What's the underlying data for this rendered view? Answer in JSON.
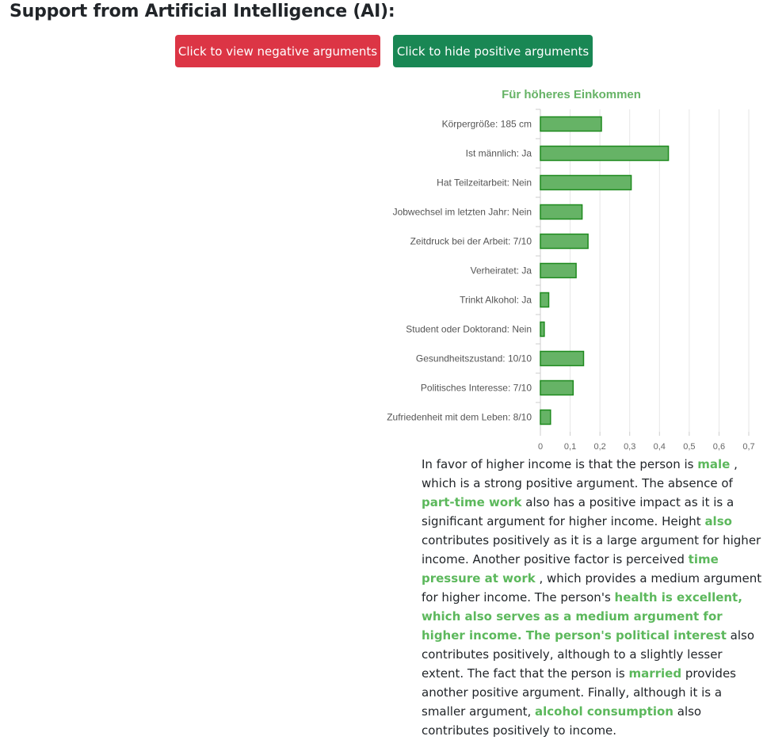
{
  "heading": "Support from Artificial Intelligence (AI):",
  "buttons": {
    "negative": "Click to view negative arguments",
    "positive": "Click to hide positive arguments"
  },
  "colors": {
    "negative_button": "#dc3545",
    "positive_button": "#198754",
    "bar_fill": "#66b366",
    "bar_stroke": "#1e8a1e",
    "highlight": "#5cb85c"
  },
  "chart_data": {
    "type": "bar",
    "orientation": "horizontal",
    "title": "Für höheres Einkommen",
    "categories": [
      "Körpergröße: 185 cm",
      "Ist männlich: Ja",
      "Hat Teilzeitarbeit: Nein",
      "Jobwechsel im letzten Jahr: Nein",
      "Zeitdruck bei der Arbeit: 7/10",
      "Verheiratet: Ja",
      "Trinkt Alkohol: Ja",
      "Student oder Doktorand: Nein",
      "Gesundheitszustand: 10/10",
      "Politisches Interesse: 7/10",
      "Zufriedenheit mit dem Leben: 8/10"
    ],
    "values": [
      0.205,
      0.43,
      0.305,
      0.14,
      0.16,
      0.12,
      0.028,
      0.013,
      0.145,
      0.11,
      0.034
    ],
    "xlim": [
      0,
      0.7
    ],
    "xticks": [
      "0",
      "0,1",
      "0,2",
      "0,3",
      "0,4",
      "0,5",
      "0,6",
      "0,7"
    ],
    "grid": true,
    "legend": "none"
  },
  "explanation": [
    {
      "t": "In favor of higher income is that the person is ",
      "hl": false
    },
    {
      "t": "male",
      "hl": true
    },
    {
      "t": " , which is a strong positive argument. The absence of ",
      "hl": false
    },
    {
      "t": "part-time work",
      "hl": true
    },
    {
      "t": " also has a positive impact as it is a significant argument for higher income. Height ",
      "hl": false
    },
    {
      "t": "also",
      "hl": true
    },
    {
      "t": " contributes positively as it is a large argument for higher income. Another positive factor is perceived ",
      "hl": false
    },
    {
      "t": "time pressure at work",
      "hl": true
    },
    {
      "t": " , which provides a medium argument for higher income. The person's ",
      "hl": false
    },
    {
      "t": "health is excellent, which also serves as a medium argument for higher income. The person's political interest",
      "hl": true
    },
    {
      "t": " also contributes positively, although to a slightly lesser extent. The fact that the person is ",
      "hl": false
    },
    {
      "t": "married",
      "hl": true
    },
    {
      "t": " provides another positive argument. Finally, although it is a smaller argument, ",
      "hl": false
    },
    {
      "t": "alcohol consumption",
      "hl": true
    },
    {
      "t": " also contributes positively to income.",
      "hl": false
    }
  ]
}
